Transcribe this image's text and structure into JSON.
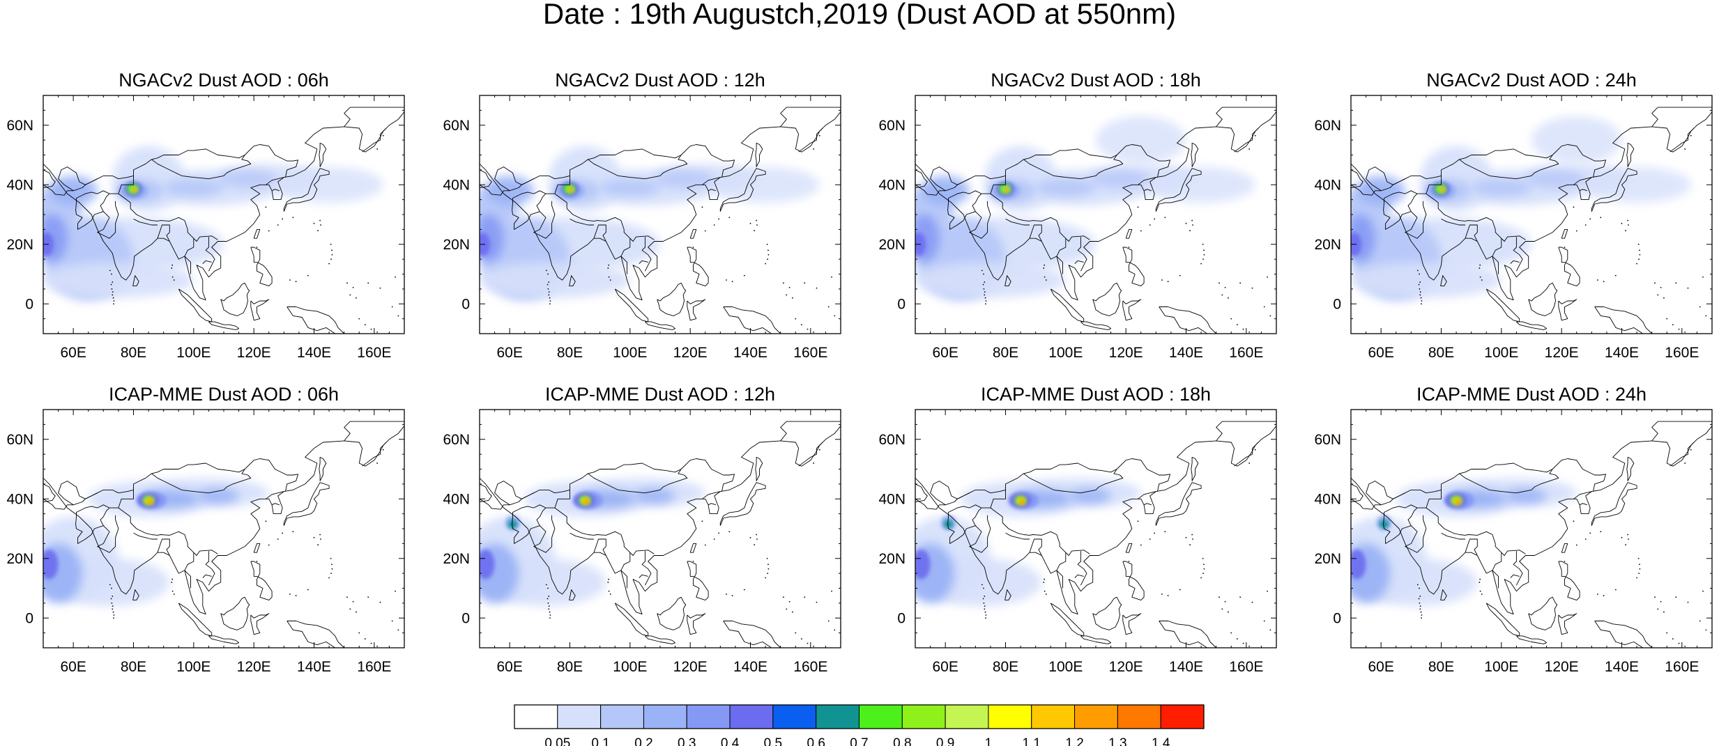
{
  "title": "Date : 19th Augustch,2019 (Dust AOD at 550nm)",
  "panels": [
    {
      "title": "NGACv2 Dust AOD : 06h",
      "model": "NGACv2",
      "hour": "06h"
    },
    {
      "title": "NGACv2 Dust AOD : 12h",
      "model": "NGACv2",
      "hour": "12h"
    },
    {
      "title": "NGACv2 Dust AOD : 18h",
      "model": "NGACv2",
      "hour": "18h"
    },
    {
      "title": "NGACv2 Dust AOD : 24h",
      "model": "NGACv2",
      "hour": "24h"
    },
    {
      "title": "ICAP-MME Dust AOD : 06h",
      "model": "ICAP-MME",
      "hour": "06h"
    },
    {
      "title": "ICAP-MME Dust AOD : 12h",
      "model": "ICAP-MME",
      "hour": "12h"
    },
    {
      "title": "ICAP-MME Dust AOD : 18h",
      "model": "ICAP-MME",
      "hour": "18h"
    },
    {
      "title": "ICAP-MME Dust AOD : 24h",
      "model": "ICAP-MME",
      "hour": "24h"
    }
  ],
  "axes": {
    "lon_ticks": [
      "60E",
      "80E",
      "100E",
      "120E",
      "140E",
      "160E"
    ],
    "lon_values": [
      60,
      80,
      100,
      120,
      140,
      160
    ],
    "lat_ticks": [
      "60N",
      "40N",
      "20N",
      "0"
    ],
    "lat_values": [
      60,
      40,
      20,
      0
    ],
    "lon_range": [
      50,
      170
    ],
    "lat_range": [
      -10,
      70
    ]
  },
  "colorbar": {
    "labels": [
      "0.05",
      "0.1",
      "0.2",
      "0.3",
      "0.4",
      "0.5",
      "0.6",
      "0.7",
      "0.8",
      "0.9",
      "1",
      "1.1",
      "1.2",
      "1.3",
      "1.4"
    ],
    "colors": [
      "#ffffff",
      "#d6e0fb",
      "#b5c6f8",
      "#9ab2f6",
      "#8599f4",
      "#6b6cf0",
      "#0a5ff0",
      "#119393",
      "#4df01a",
      "#8ef21a",
      "#c5f552",
      "#ffff00",
      "#ffc800",
      "#ff9d00",
      "#ff7800",
      "#ff1e00"
    ]
  }
}
